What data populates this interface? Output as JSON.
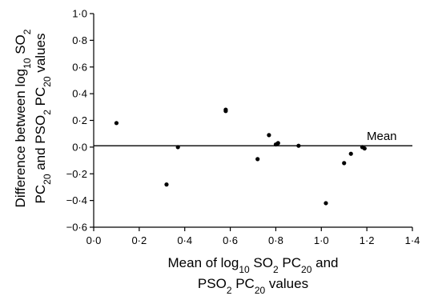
{
  "chart_data": {
    "type": "scatter",
    "title": "",
    "xlabel": {
      "line1": [
        "Mean of log",
        "10",
        " SO",
        "2",
        " PC",
        "20",
        " and"
      ],
      "line2": [
        "PSO",
        "2",
        " PC",
        "20",
        " values"
      ]
    },
    "ylabel": {
      "line1": [
        "Difference between log",
        "10",
        " SO",
        "2"
      ],
      "line2": [
        "PC",
        "20",
        " and PSO",
        "2",
        " PC",
        "20",
        " values"
      ]
    },
    "xlim": [
      0.0,
      1.4
    ],
    "ylim": [
      -0.6,
      1.0
    ],
    "x_ticks": [
      {
        "value": 0.0,
        "label": "0·0"
      },
      {
        "value": 0.2,
        "label": "0·2"
      },
      {
        "value": 0.4,
        "label": "0·4"
      },
      {
        "value": 0.6,
        "label": "0·6"
      },
      {
        "value": 0.8,
        "label": "0·8"
      },
      {
        "value": 1.0,
        "label": "1·0"
      },
      {
        "value": 1.2,
        "label": "1·2"
      },
      {
        "value": 1.4,
        "label": "1·4"
      }
    ],
    "y_ticks": [
      {
        "value": 1.0,
        "label": "1·0"
      },
      {
        "value": 0.8,
        "label": "0·8"
      },
      {
        "value": 0.6,
        "label": "0·6"
      },
      {
        "value": 0.4,
        "label": "0·4"
      },
      {
        "value": 0.2,
        "label": "0·2"
      },
      {
        "value": 0.0,
        "label": "0·0"
      },
      {
        "value": -0.2,
        "label": "−0·2"
      },
      {
        "value": -0.4,
        "label": "−0·4"
      },
      {
        "value": -0.6,
        "label": "−0·6"
      }
    ],
    "grid": false,
    "legend": "none",
    "reference_line": {
      "y": 0.01,
      "label": "Mean"
    },
    "points": [
      {
        "x": 0.1,
        "y": 0.18
      },
      {
        "x": 0.32,
        "y": -0.28
      },
      {
        "x": 0.37,
        "y": 0.0
      },
      {
        "x": 0.58,
        "y": 0.28
      },
      {
        "x": 0.58,
        "y": 0.27
      },
      {
        "x": 0.72,
        "y": -0.09
      },
      {
        "x": 0.77,
        "y": 0.09
      },
      {
        "x": 0.8,
        "y": 0.02
      },
      {
        "x": 0.81,
        "y": 0.03
      },
      {
        "x": 0.9,
        "y": 0.01
      },
      {
        "x": 1.02,
        "y": -0.42
      },
      {
        "x": 1.1,
        "y": -0.12
      },
      {
        "x": 1.13,
        "y": -0.05
      },
      {
        "x": 1.18,
        "y": 0.0
      },
      {
        "x": 1.19,
        "y": -0.01
      }
    ],
    "colors": {
      "marks": "#000000"
    }
  }
}
